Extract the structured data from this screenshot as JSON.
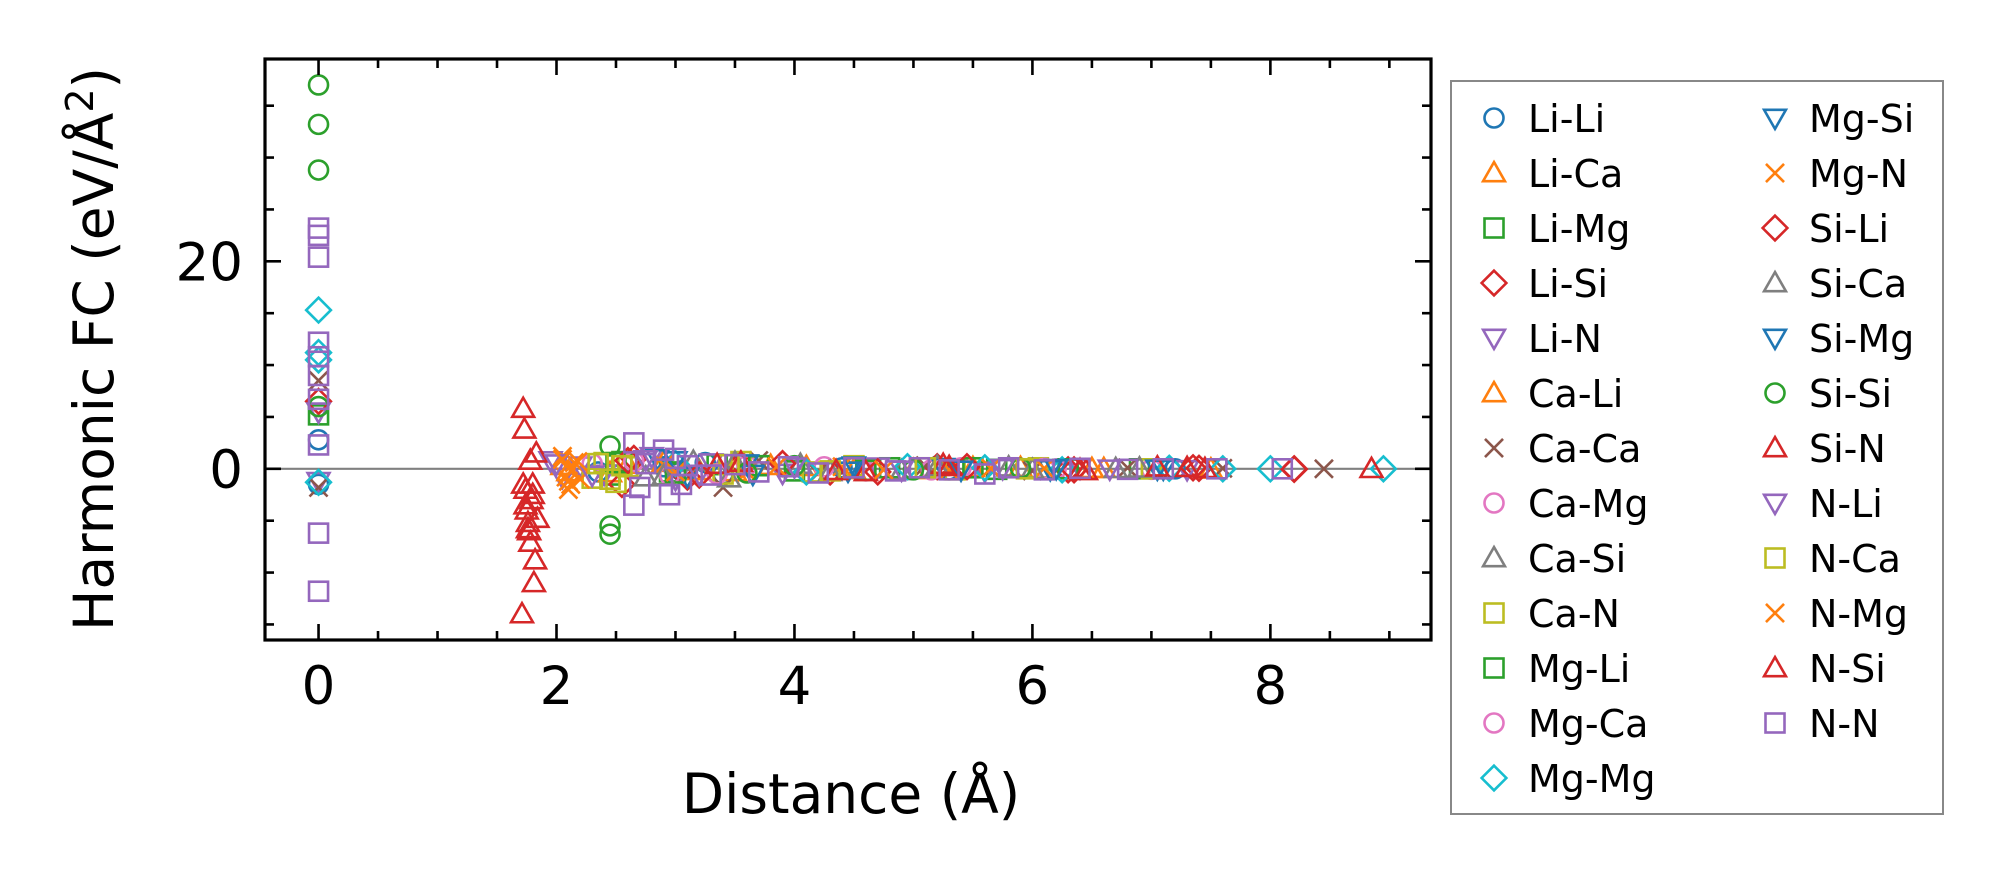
{
  "chart_data": {
    "type": "scatter",
    "xlabel": "Distance (Å)",
    "ylabel_main": "Harmonic FC (eV/Å",
    "ylabel_sup": "2",
    "ylabel_close": ")",
    "xlim": [
      -0.45,
      9.35
    ],
    "ylim": [
      -16.5,
      39.5
    ],
    "xticks": [
      0,
      2,
      4,
      6,
      8
    ],
    "yticks": [
      0,
      20
    ],
    "x_tick_labels": [
      "0",
      "2",
      "4",
      "6",
      "8"
    ],
    "y_tick_labels": [
      "0",
      "20"
    ],
    "reference_line_y": 0,
    "grid": false,
    "legend_placement": "outside-right",
    "series": [
      {
        "name": "Li-Li",
        "marker": "circle",
        "color": "#1f77b4",
        "points": [
          [
            0,
            2.8
          ],
          [
            0,
            -1.5
          ],
          [
            2.35,
            -0.3
          ],
          [
            2.9,
            0.2
          ],
          [
            3.05,
            -0.2
          ],
          [
            3.25,
            0.6
          ],
          [
            3.4,
            -0.5
          ],
          [
            4.4,
            0.1
          ],
          [
            5.3,
            -0.1
          ],
          [
            6.1,
            0.05
          ],
          [
            7.2,
            0.0
          ]
        ]
      },
      {
        "name": "Li-Ca",
        "marker": "triangle-up",
        "color": "#ff7f0e",
        "points": [
          [
            2.05,
            0.3
          ],
          [
            2.45,
            -0.4
          ],
          [
            2.9,
            0.6
          ],
          [
            3.5,
            -0.3
          ],
          [
            4.1,
            0.2
          ],
          [
            5.0,
            -0.1
          ],
          [
            5.9,
            0.1
          ],
          [
            6.6,
            0.0
          ],
          [
            7.5,
            -0.05
          ]
        ]
      },
      {
        "name": "Li-Mg",
        "marker": "square",
        "color": "#2ca02c",
        "points": [
          [
            0,
            5.2
          ],
          [
            2.45,
            -0.6
          ],
          [
            2.55,
            0.7
          ],
          [
            2.95,
            -0.3
          ],
          [
            3.35,
            0.4
          ],
          [
            4.0,
            -0.2
          ],
          [
            4.8,
            0.1
          ],
          [
            5.7,
            -0.05
          ],
          [
            6.9,
            0.0
          ]
        ]
      },
      {
        "name": "Li-Si",
        "marker": "diamond",
        "color": "#d62728",
        "points": [
          [
            0,
            6.5
          ],
          [
            2.55,
            -1.5
          ],
          [
            2.65,
            1.0
          ],
          [
            3.1,
            -0.8
          ],
          [
            3.55,
            0.5
          ],
          [
            4.3,
            -0.3
          ],
          [
            5.2,
            0.2
          ],
          [
            6.3,
            -0.1
          ],
          [
            7.4,
            0.05
          ],
          [
            8.2,
            0.0
          ]
        ]
      },
      {
        "name": "Li-N",
        "marker": "triangle-down",
        "color": "#9467bd",
        "points": [
          [
            0,
            5.5
          ],
          [
            0,
            -1.2
          ],
          [
            1.95,
            0.8
          ],
          [
            2.05,
            -0.8
          ],
          [
            2.2,
            0.3
          ],
          [
            2.4,
            -0.5
          ],
          [
            2.8,
            1.2
          ],
          [
            3.0,
            -1.0
          ],
          [
            3.3,
            0.6
          ],
          [
            3.9,
            -0.4
          ],
          [
            4.7,
            0.2
          ],
          [
            5.6,
            -0.2
          ],
          [
            6.4,
            0.1
          ],
          [
            7.3,
            -0.05
          ]
        ]
      },
      {
        "name": "Ca-Li",
        "marker": "triangle-up",
        "color": "#ff7f0e",
        "points": [
          [
            2.1,
            -0.3
          ],
          [
            2.6,
            0.4
          ],
          [
            3.2,
            -0.2
          ],
          [
            3.8,
            0.3
          ],
          [
            4.5,
            -0.1
          ],
          [
            5.5,
            0.1
          ],
          [
            6.5,
            0.0
          ]
        ]
      },
      {
        "name": "Ca-Ca",
        "marker": "x",
        "color": "#8c564b",
        "points": [
          [
            0,
            8.5
          ],
          [
            0,
            -1.8
          ],
          [
            3.4,
            -1.8
          ],
          [
            3.7,
            0.8
          ],
          [
            4.2,
            -0.4
          ],
          [
            5.1,
            0.3
          ],
          [
            6.0,
            -0.2
          ],
          [
            6.8,
            0.1
          ],
          [
            7.6,
            0.05
          ],
          [
            8.45,
            0.0
          ]
        ]
      },
      {
        "name": "Ca-Mg",
        "marker": "circle",
        "color": "#e377c2",
        "points": [
          [
            2.3,
            0.5
          ],
          [
            2.95,
            -0.6
          ],
          [
            3.6,
            0.3
          ],
          [
            4.6,
            -0.2
          ],
          [
            5.4,
            0.1
          ],
          [
            6.2,
            0.0
          ],
          [
            7.0,
            -0.05
          ]
        ]
      },
      {
        "name": "Ca-Si",
        "marker": "triangle-up",
        "color": "#7f7f7f",
        "points": [
          [
            2.75,
            -0.8
          ],
          [
            3.15,
            0.7
          ],
          [
            3.45,
            -0.9
          ],
          [
            4.05,
            0.4
          ],
          [
            4.9,
            -0.2
          ],
          [
            5.8,
            0.15
          ],
          [
            6.7,
            0.0
          ]
        ]
      },
      {
        "name": "Ca-N",
        "marker": "square",
        "color": "#bcbd22",
        "points": [
          [
            2.3,
            -0.9
          ],
          [
            2.4,
            0.6
          ],
          [
            2.5,
            -1.3
          ],
          [
            2.6,
            0.2
          ],
          [
            3.4,
            -0.5
          ],
          [
            3.55,
            0.7
          ],
          [
            4.15,
            -0.3
          ],
          [
            4.5,
            0.3
          ],
          [
            5.35,
            -0.1
          ],
          [
            6.05,
            0.1
          ],
          [
            7.0,
            0.0
          ]
        ]
      },
      {
        "name": "Mg-Li",
        "marker": "square",
        "color": "#2ca02c",
        "points": [
          [
            2.5,
            0.6
          ],
          [
            3.0,
            -0.4
          ],
          [
            3.7,
            0.3
          ],
          [
            4.6,
            -0.15
          ],
          [
            5.5,
            0.1
          ],
          [
            6.3,
            0.0
          ]
        ]
      },
      {
        "name": "Mg-Ca",
        "marker": "circle",
        "color": "#e377c2",
        "points": [
          [
            2.65,
            0.7
          ],
          [
            3.35,
            -0.5
          ],
          [
            4.25,
            0.2
          ],
          [
            5.15,
            -0.1
          ],
          [
            6.1,
            0.05
          ]
        ]
      },
      {
        "name": "Mg-Mg",
        "marker": "diamond",
        "color": "#17becf",
        "points": [
          [
            0,
            15.3
          ],
          [
            0,
            11.2
          ],
          [
            0,
            10.5
          ],
          [
            0,
            -1.3
          ],
          [
            3.0,
            0.5
          ],
          [
            4.1,
            -0.3
          ],
          [
            4.95,
            0.2
          ],
          [
            5.6,
            0.1
          ],
          [
            6.25,
            -0.1
          ],
          [
            7.15,
            0.05
          ],
          [
            7.6,
            0.0
          ],
          [
            8.0,
            0.0
          ],
          [
            8.95,
            0.0
          ]
        ]
      },
      {
        "name": "Mg-Si",
        "marker": "triangle-down",
        "color": "#1f77b4",
        "points": [
          [
            2.85,
            1.0
          ],
          [
            3.1,
            -0.7
          ],
          [
            3.6,
            0.5
          ],
          [
            4.45,
            -0.2
          ],
          [
            5.25,
            0.15
          ],
          [
            6.15,
            -0.05
          ],
          [
            7.1,
            0.0
          ]
        ]
      },
      {
        "name": "Mg-N",
        "marker": "x",
        "color": "#ff7f0e",
        "points": [
          [
            2.05,
            1.2
          ],
          [
            2.08,
            -0.8
          ],
          [
            2.1,
            -2.0
          ],
          [
            2.12,
            -1.5
          ],
          [
            2.15,
            0.6
          ],
          [
            2.2,
            -1.0
          ],
          [
            2.9,
            0.4
          ],
          [
            3.6,
            -0.3
          ],
          [
            4.4,
            0.2
          ],
          [
            5.3,
            -0.1
          ],
          [
            6.1,
            0.05
          ]
        ]
      },
      {
        "name": "Si-Li",
        "marker": "diamond",
        "color": "#d62728",
        "points": [
          [
            2.6,
            0.8
          ],
          [
            3.2,
            -0.6
          ],
          [
            3.9,
            0.5
          ],
          [
            4.7,
            -0.3
          ],
          [
            5.45,
            0.2
          ],
          [
            6.35,
            -0.1
          ],
          [
            7.35,
            0.1
          ],
          [
            8.2,
            -0.05
          ]
        ]
      },
      {
        "name": "Si-Ca",
        "marker": "triangle-up",
        "color": "#7f7f7f",
        "points": [
          [
            2.9,
            -0.7
          ],
          [
            3.5,
            0.6
          ],
          [
            4.3,
            -0.3
          ],
          [
            5.2,
            0.2
          ],
          [
            6.0,
            -0.1
          ],
          [
            6.9,
            0.05
          ]
        ]
      },
      {
        "name": "Si-Mg",
        "marker": "triangle-down",
        "color": "#1f77b4",
        "points": [
          [
            3.0,
            0.8
          ],
          [
            3.65,
            -0.5
          ],
          [
            4.5,
            0.3
          ],
          [
            5.4,
            -0.1
          ],
          [
            6.2,
            0.05
          ],
          [
            7.05,
            0.0
          ]
        ]
      },
      {
        "name": "Si-Si",
        "marker": "circle",
        "color": "#2ca02c",
        "points": [
          [
            0,
            37.0
          ],
          [
            0,
            33.2
          ],
          [
            0,
            28.8
          ],
          [
            0,
            6.0
          ],
          [
            2.45,
            2.2
          ],
          [
            2.45,
            -5.5
          ],
          [
            2.45,
            -6.3
          ],
          [
            3.6,
            -0.4
          ],
          [
            4.0,
            0.3
          ],
          [
            5.0,
            -0.1
          ],
          [
            5.9,
            0.05
          ]
        ]
      },
      {
        "name": "Si-N",
        "marker": "triangle-up",
        "color": "#d62728",
        "points": [
          [
            1.72,
            5.8
          ],
          [
            1.73,
            3.8
          ],
          [
            1.74,
            -2.0
          ],
          [
            1.75,
            -4.0
          ],
          [
            1.76,
            -5.2
          ],
          [
            1.77,
            -6.0
          ],
          [
            1.78,
            -7.1
          ],
          [
            1.79,
            -3.0
          ],
          [
            1.8,
            -1.5
          ],
          [
            1.71,
            -14.0
          ],
          [
            1.81,
            -11.0
          ],
          [
            1.82,
            -8.8
          ],
          [
            1.83,
            1.5
          ],
          [
            1.84,
            -4.8
          ],
          [
            3.55,
            0.6
          ],
          [
            4.6,
            -0.3
          ],
          [
            5.25,
            0.4
          ],
          [
            6.45,
            -0.2
          ],
          [
            7.05,
            0.15
          ],
          [
            7.45,
            0.0
          ],
          [
            8.85,
            0.0
          ]
        ]
      },
      {
        "name": "N-Li",
        "marker": "triangle-down",
        "color": "#9467bd",
        "points": [
          [
            2.0,
            0.5
          ],
          [
            2.3,
            -0.6
          ],
          [
            2.75,
            0.9
          ],
          [
            3.2,
            -0.5
          ],
          [
            4.0,
            0.2
          ],
          [
            4.9,
            -0.1
          ],
          [
            5.75,
            0.05
          ],
          [
            6.65,
            0.0
          ]
        ]
      },
      {
        "name": "N-Ca",
        "marker": "square",
        "color": "#bcbd22",
        "points": [
          [
            2.35,
            0.5
          ],
          [
            2.45,
            -1.0
          ],
          [
            2.55,
            0.3
          ],
          [
            3.45,
            0.4
          ],
          [
            4.3,
            -0.2
          ],
          [
            5.1,
            0.1
          ],
          [
            5.95,
            0.0
          ]
        ]
      },
      {
        "name": "N-Mg",
        "marker": "x",
        "color": "#ff7f0e",
        "points": [
          [
            2.05,
            0.9
          ],
          [
            2.1,
            -1.2
          ],
          [
            2.12,
            -0.2
          ],
          [
            2.18,
            0.7
          ],
          [
            3.0,
            -0.3
          ],
          [
            3.85,
            0.2
          ],
          [
            4.75,
            -0.1
          ],
          [
            5.65,
            0.05
          ]
        ]
      },
      {
        "name": "N-Si",
        "marker": "triangle-up",
        "color": "#d62728",
        "points": [
          [
            1.72,
            -1.5
          ],
          [
            1.74,
            -3.5
          ],
          [
            1.76,
            -5.8
          ],
          [
            1.78,
            0.8
          ],
          [
            1.8,
            -2.5
          ],
          [
            3.35,
            0.4
          ],
          [
            4.35,
            -0.2
          ],
          [
            5.3,
            0.2
          ],
          [
            6.4,
            -0.1
          ],
          [
            7.3,
            0.1
          ]
        ]
      },
      {
        "name": "N-N",
        "marker": "square",
        "color": "#9467bd",
        "points": [
          [
            0,
            23.2
          ],
          [
            0,
            22.5
          ],
          [
            0,
            20.4
          ],
          [
            0,
            12.2
          ],
          [
            0,
            10.8
          ],
          [
            0,
            9.0
          ],
          [
            0,
            6.7
          ],
          [
            0,
            2.3
          ],
          [
            0,
            -6.2
          ],
          [
            0,
            -11.8
          ],
          [
            2.65,
            2.5
          ],
          [
            2.65,
            -3.5
          ],
          [
            2.7,
            -1.8
          ],
          [
            2.75,
            0.5
          ],
          [
            2.9,
            1.8
          ],
          [
            2.95,
            -2.5
          ],
          [
            3.0,
            1.0
          ],
          [
            3.05,
            -1.5
          ],
          [
            3.1,
            0.3
          ],
          [
            3.3,
            -0.6
          ],
          [
            3.5,
            0.4
          ],
          [
            3.7,
            -0.3
          ],
          [
            3.95,
            0.2
          ],
          [
            4.2,
            -0.4
          ],
          [
            4.5,
            0.1
          ],
          [
            4.85,
            -0.2
          ],
          [
            5.05,
            0.1
          ],
          [
            5.3,
            -0.1
          ],
          [
            5.6,
            -0.5
          ],
          [
            5.8,
            0.1
          ],
          [
            6.1,
            -0.1
          ],
          [
            6.4,
            0.05
          ],
          [
            6.8,
            -0.05
          ],
          [
            7.1,
            0.0
          ],
          [
            7.55,
            0.0
          ],
          [
            8.1,
            0.0
          ]
        ]
      }
    ]
  }
}
